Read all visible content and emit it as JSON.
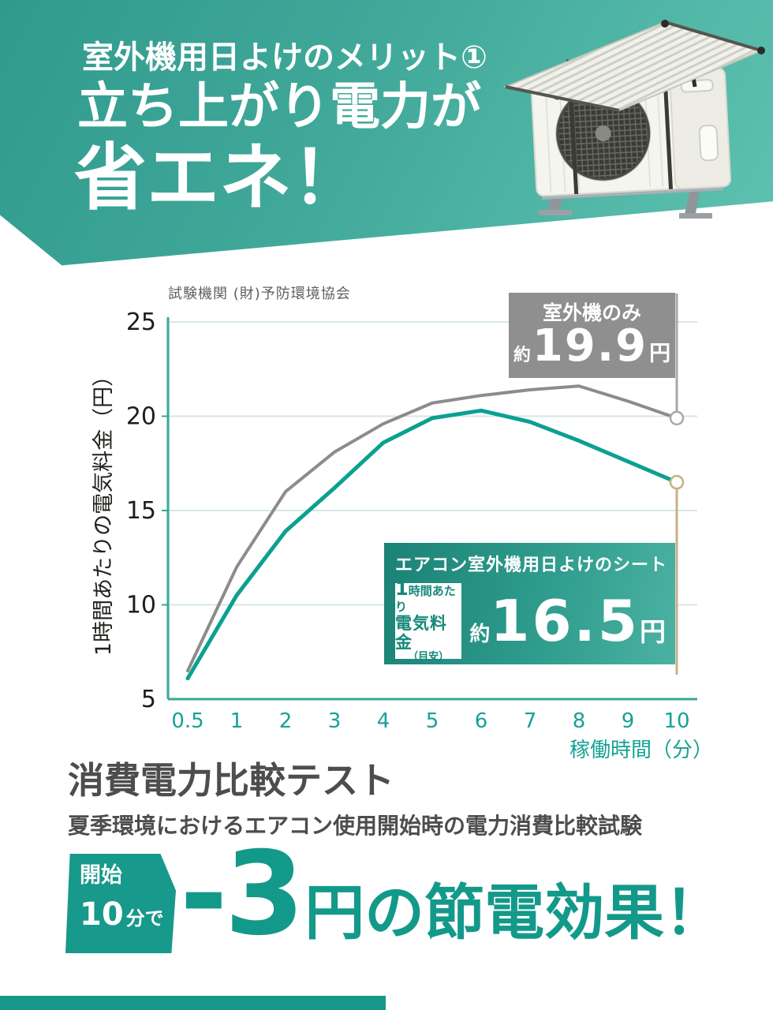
{
  "header": {
    "eyebrow": "室外機用日よけのメリット①",
    "title_line1": "立ち上がり電力が",
    "title_line2": "省エネ！",
    "photo_alt": "outdoor-unit-with-shade-photo"
  },
  "chart": {
    "gray_label": {
      "name": "室外機のみ",
      "approx": "約",
      "value": "19.9",
      "unit": "円"
    },
    "teal_label": {
      "name": "エアコン室外機用日よけのシート",
      "per_hour_prefix": "1",
      "per_hour": "時間あたり",
      "fee": "電気料金",
      "estimate": "（目安）",
      "approx": "約",
      "value": "16.5",
      "unit": "円"
    }
  },
  "chart_data": {
    "type": "line",
    "source_note": "試験機関 (財)予防環境協会",
    "categories": [
      "0.5",
      "1",
      "2",
      "3",
      "4",
      "5",
      "6",
      "7",
      "8",
      "9",
      "10"
    ],
    "series": [
      {
        "name": "室外機のみ",
        "values": [
          6.5,
          12.0,
          16.0,
          18.1,
          19.6,
          20.7,
          21.1,
          21.4,
          21.6,
          20.8,
          19.9
        ],
        "end_label": "約19.9円",
        "color": "#8c8c8c",
        "width": 4,
        "drop": "up",
        "drop_color": "#a8a8a8"
      },
      {
        "name": "エアコン室外機用日よけのシート",
        "values": [
          6.1,
          10.5,
          13.9,
          16.2,
          18.6,
          19.9,
          20.3,
          19.7,
          18.7,
          17.6,
          16.5
        ],
        "end_label": "約16.5円",
        "color": "#0ba092",
        "width": 5,
        "drop": "down",
        "drop_color": "#c9af87"
      }
    ],
    "xlabel": "稼働時間（分）",
    "ylabel": "1時間あたりの電気料金（円）",
    "ylim": [
      5,
      25
    ],
    "yticks": [
      5,
      10,
      15,
      20,
      25
    ],
    "grid": true,
    "grid_color": "#d6e8e4",
    "axis_color": "#35a79a",
    "tick_color": "#16a294",
    "ytick_color": "#1d1d1b",
    "legend_position": "inline-boxes"
  },
  "test_section": {
    "title": "消費電力比較テスト",
    "subtitle": "夏季環境におけるエアコン使用開始時の電力消費比較試験",
    "badge_line1": "開始",
    "badge_value": "10",
    "badge_suffix": "分で",
    "result_value": "-3",
    "result_text": "円の節電効果！"
  },
  "colors": {
    "accent_teal": "#16a092",
    "hero_gradient_start": "#2f9a8e",
    "hero_gradient_end": "#5fc2b1",
    "series_gray": "#8c8c8c",
    "series_teal": "#0ba092",
    "drop_line_tan": "#c9af87",
    "dark_text": "#4d4d4d"
  }
}
